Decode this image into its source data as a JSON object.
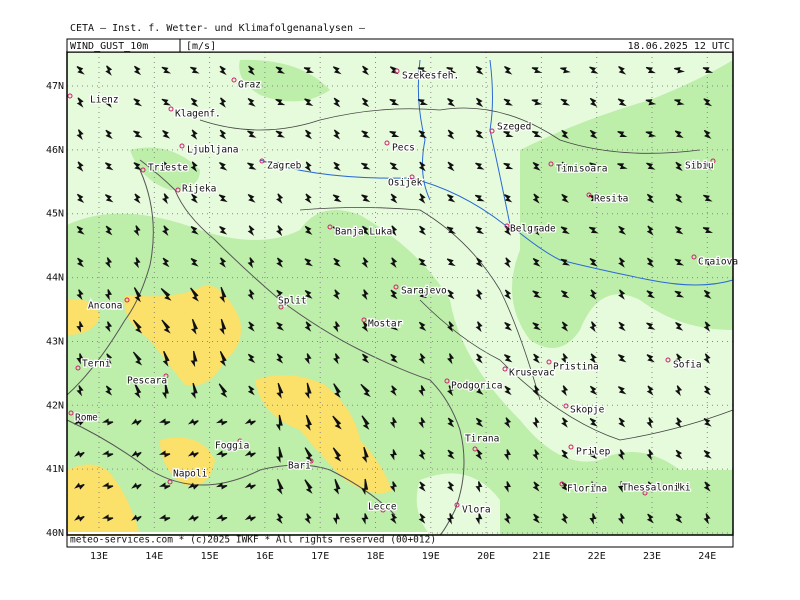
{
  "header": {
    "title": "CETA – Inst. f. Wetter- und Klimafolgenanalysen –",
    "parameter": "WIND_GUST_10m",
    "unit": "[m/s]",
    "datetime": "18.06.2025 12 UTC"
  },
  "footer": "meteo-services.com * (c)2025 IWKF * All rights reserved (00+012)",
  "lat_labels": [
    "47N",
    "46N",
    "45N",
    "44N",
    "43N",
    "42N",
    "41N",
    "40N"
  ],
  "lon_labels": [
    "13E",
    "14E",
    "15E",
    "16E",
    "17E",
    "18E",
    "19E",
    "20E",
    "21E",
    "22E",
    "23E",
    "24E"
  ],
  "cities": [
    "Lienz",
    "Graz",
    "Szekesfeh.",
    "Klagenf.",
    "Szeged",
    "Ljubljana",
    "Pecs",
    "Trieste",
    "Zagreb",
    "Timisoara",
    "Sibiu",
    "Osijek",
    "Rijeka",
    "Resita",
    "Banja Luka",
    "Belgrade",
    "Craiova",
    "Sarajevo",
    "Ancona",
    "Split",
    "Mostar",
    "Terni",
    "Pescara",
    "Pristina",
    "Sofia",
    "Krusevac",
    "Podgorica",
    "Rome",
    "Skopje",
    "Tirana",
    "Foggia",
    "Prilep",
    "Bari",
    "Napoli",
    "Florina",
    "Thessaloniki",
    "Lecce",
    "Vlora"
  ]
}
